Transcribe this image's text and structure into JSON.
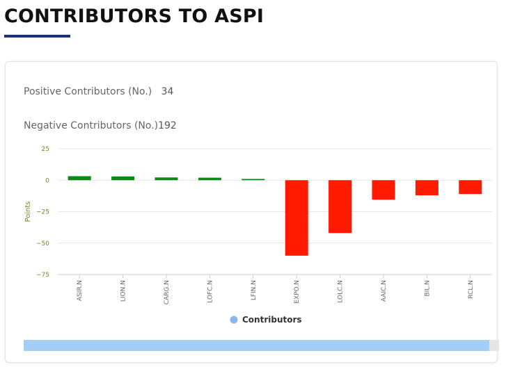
{
  "page": {
    "title": "CONTRIBUTORS TO ASPI"
  },
  "stats": {
    "positive_label": "Positive Contributors (No.)",
    "positive_value": "34",
    "negative_label": "Negative Contributors (No.)",
    "negative_value": "192"
  },
  "chart_data": {
    "type": "bar",
    "categories": [
      "ASIR.N",
      "LION.N",
      "CARG.N",
      "LOFC.N",
      "LFIN.N",
      "EXPO.N",
      "LOLC.N",
      "AAIC.N",
      "BIL.N",
      "RCL.N"
    ],
    "series": [
      {
        "name": "Contributors",
        "values": [
          3.2,
          3.0,
          2.2,
          2.0,
          1.0,
          -60.0,
          -42.0,
          -15.5,
          -12.0,
          -11.0
        ]
      }
    ],
    "ylabel": "Points",
    "ylim": [
      -75,
      25
    ],
    "yticks": [
      25,
      0,
      -25,
      -50,
      -75
    ],
    "grid": true,
    "legend": "bottom",
    "colors": {
      "positive": "#0a8a12",
      "negative": "#ff1a00",
      "legend_marker": "#8ab8ee"
    }
  },
  "scrollbar": {
    "visible_fraction": 0.98,
    "thumb_color": "#a6cdf4"
  }
}
